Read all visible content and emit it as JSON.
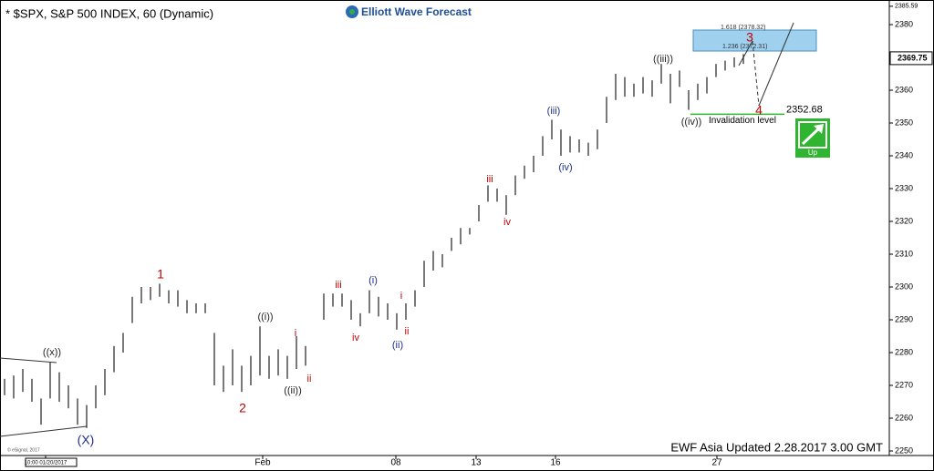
{
  "chart_data": {
    "type": "ohlc",
    "title": "* $SPX, S&P 500 INDEX, 60 (Dynamic)",
    "logo": "Elliott Wave Forecast",
    "footer": "EWF Asia Updated 2.28.2017 3.00 GMT",
    "copyright": "© eSignal, 2017",
    "color": "#222222",
    "high": [
      2272,
      2273,
      2275,
      2272,
      2266,
      2277,
      2274,
      2270,
      2266,
      2264,
      2270,
      2275,
      2282,
      2286,
      2297,
      2300,
      2300,
      2301,
      2299,
      2299,
      2296,
      2295,
      2295,
      2286,
      2276,
      2281,
      2276,
      2279,
      2288,
      2279,
      2281,
      2279,
      2285,
      2282,
      null,
      2298,
      2298,
      2298,
      2296,
      2292,
      2299,
      2297,
      2295,
      2292,
      2295,
      2299,
      2308,
      2311,
      2310,
      2315,
      2318,
      2318,
      2325,
      2331,
      2330,
      2328,
      2334,
      2337,
      2340,
      2346,
      2351,
      2348,
      2346,
      2345,
      2344,
      2348,
      2358,
      2365,
      2364,
      2362,
      2364,
      2363,
      2368,
      2365,
      2366,
      2360,
      2362,
      2364,
      2368,
      2369,
      2370,
      2371
    ],
    "low": [
      2267,
      2266,
      2268,
      2265,
      2258,
      2266,
      2265,
      2263,
      2258,
      2257,
      2263,
      2267,
      2274,
      2280,
      2289,
      2295,
      2296,
      2297,
      2295,
      2294,
      2292,
      2292,
      2292,
      2270,
      2268,
      2270,
      2268,
      2270,
      2273,
      2272,
      2273,
      2272,
      2275,
      2276,
      null,
      2290,
      2294,
      2294,
      2290,
      2288,
      2292,
      2291,
      2290,
      2287,
      2290,
      2294,
      2300,
      2305,
      2306,
      2311,
      2313,
      2316,
      2320,
      2326,
      2326,
      2322,
      2328,
      2333,
      2335,
      2340,
      2345,
      2340,
      2341,
      2341,
      2340,
      2342,
      2350,
      2357,
      2358,
      2358,
      2359,
      2358,
      2362,
      2356,
      2361,
      2354,
      2357,
      2359,
      2364,
      2366,
      2367,
      2368
    ],
    "xlim": [
      0,
      97.5
    ],
    "xticks": [
      {
        "value": 5.0,
        "label": "10:00 01/20/2017"
      },
      {
        "value": 28.8,
        "label": "Feb"
      },
      {
        "value": 43.4,
        "label": "08"
      },
      {
        "value": 52.2,
        "label": "13"
      },
      {
        "value": 60.9,
        "label": "16"
      },
      {
        "value": 78.6,
        "label": "27"
      }
    ],
    "ylim": [
      2247.5,
      2388
    ],
    "yticks": [
      2250,
      2260,
      2270,
      2280,
      2290,
      2300,
      2310,
      2320,
      2330,
      2340,
      2350,
      2360,
      2370,
      2380
    ],
    "top_label": 2385.59,
    "last_price": 2369.75,
    "invalidation": 2352.68,
    "invalidation_text": "Invalidation level",
    "fib_1618": "1.618 (2378.32)",
    "fib_1236": "1.236 (2372.31)",
    "trend": "Up",
    "wave_labels": [
      {
        "text": "((x))",
        "color": "#222222"
      },
      {
        "text": "(X)",
        "color": "#1f2d8a"
      },
      {
        "text": "1",
        "color": "#c00000"
      },
      {
        "text": "2",
        "color": "#c00000"
      },
      {
        "text": "((i))",
        "color": "#222222"
      },
      {
        "text": "i",
        "color": "#c00000"
      },
      {
        "text": "ii",
        "color": "#c00000"
      },
      {
        "text": "((ii))",
        "color": "#222222"
      },
      {
        "text": "iii",
        "color": "#c00000"
      },
      {
        "text": "iv",
        "color": "#c00000"
      },
      {
        "text": "(i)",
        "color": "#1f2d8a"
      },
      {
        "text": "i",
        "color": "#c00000"
      },
      {
        "text": "ii",
        "color": "#c00000"
      },
      {
        "text": "(ii)",
        "color": "#1f2d8a"
      },
      {
        "text": "iii",
        "color": "#c00000"
      },
      {
        "text": "iv",
        "color": "#c00000"
      },
      {
        "text": "(iii)",
        "color": "#1f2d8a"
      },
      {
        "text": "(iv)",
        "color": "#1f2d8a"
      },
      {
        "text": "((iii))",
        "color": "#222222"
      },
      {
        "text": "((iv))",
        "color": "#222222"
      },
      {
        "text": "3",
        "color": "#c00000"
      },
      {
        "text": "4",
        "color": "#c00000"
      }
    ]
  }
}
